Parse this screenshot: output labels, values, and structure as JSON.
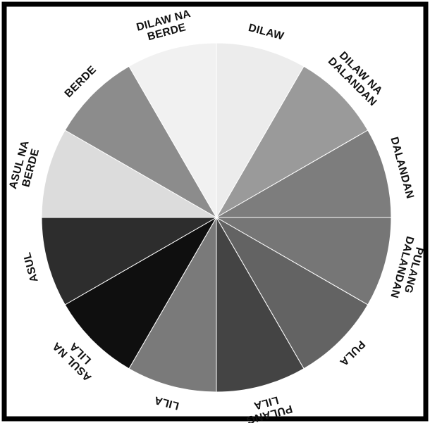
{
  "colors": {
    "frame": "#000000",
    "background": "#ffffff",
    "divider": "#ffffff",
    "label": "#111111"
  },
  "segments": [
    {
      "key": "dilaw",
      "lines": [
        "DILAW"
      ],
      "fill": "#ececec"
    },
    {
      "key": "dilaw-na-dalandan",
      "lines": [
        "DILAW NA",
        "DALANDAN"
      ],
      "fill": "#9a9a9a"
    },
    {
      "key": "dalandan",
      "lines": [
        "DALANDAN"
      ],
      "fill": "#7d7d7d"
    },
    {
      "key": "pulang-dalandan",
      "lines": [
        "PULANG",
        "DALANDAN"
      ],
      "fill": "#767676"
    },
    {
      "key": "pula",
      "lines": [
        "PULA"
      ],
      "fill": "#636363"
    },
    {
      "key": "pulang-lila",
      "lines": [
        "PULANG",
        "LILA"
      ],
      "fill": "#444444"
    },
    {
      "key": "lila",
      "lines": [
        "LILA"
      ],
      "fill": "#7a7a7a"
    },
    {
      "key": "asul-na-lila",
      "lines": [
        "ASUL NA",
        "LILA"
      ],
      "fill": "#0f0f0f"
    },
    {
      "key": "asul",
      "lines": [
        "ASUL"
      ],
      "fill": "#2d2d2d"
    },
    {
      "key": "asul-na-berde",
      "lines": [
        "ASUL NA",
        "BERDE"
      ],
      "fill": "#dcdcdc"
    },
    {
      "key": "berde",
      "lines": [
        "BERDE"
      ],
      "fill": "#8c8c8c"
    },
    {
      "key": "dilaw-na-berde",
      "lines": [
        "DILAW NA",
        "BERDE"
      ],
      "fill": "#f1f1f1"
    }
  ]
}
